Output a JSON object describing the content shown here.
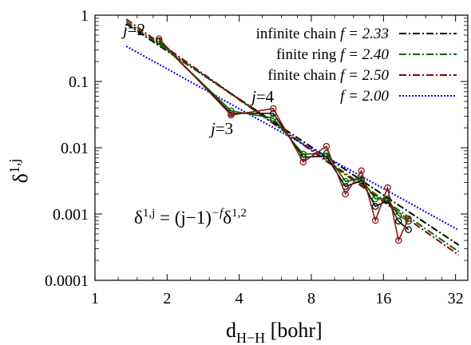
{
  "chart_data": {
    "type": "line",
    "xscale": "log2",
    "yscale": "log10",
    "xlim": [
      1,
      36
    ],
    "ylim": [
      0.0001,
      1
    ],
    "xticks": [
      1,
      2,
      4,
      8,
      16,
      32
    ],
    "xtick_labels": [
      "1",
      "2",
      "4",
      "8",
      "16",
      "32"
    ],
    "yticks": [
      0.0001,
      0.001,
      0.01,
      0.1,
      1
    ],
    "ytick_labels": [
      "0.0001",
      "0.001",
      "0.01",
      "0.1",
      "1"
    ],
    "xlabel": {
      "base": "d",
      "sub": "H−H",
      "rest": " [bohr]"
    },
    "ylabel": {
      "base": "δ",
      "sup": "1,j"
    },
    "formula": {
      "lhs": "δ",
      "lhs_sup": "1,j",
      "eq": " = (j−1)",
      "exp": "−f",
      "rhs": "δ",
      "rhs_sup": "1,2"
    },
    "annotations": [
      {
        "pre": "j",
        "text": "=2"
      },
      {
        "pre": "j",
        "text": "=4"
      },
      {
        "pre": "j",
        "text": "=3"
      }
    ],
    "fits": [
      {
        "name": "infinite chain",
        "f_label": "f = 2.33",
        "color": "#000000",
        "dash": "9 3 2 3",
        "x": [
          1.35,
          33
        ],
        "y": [
          0.74,
          0.00034
        ]
      },
      {
        "name": "finite ring",
        "f_label": "f = 2.40",
        "color": "#006400",
        "dash": "9 3 2 3",
        "x": [
          1.35,
          33
        ],
        "y": [
          0.8,
          0.00027
        ]
      },
      {
        "name": "finite chain",
        "f_label": "f = 2.50",
        "color": "#8b0000",
        "dash": "9 3 2 3",
        "x": [
          1.35,
          33
        ],
        "y": [
          0.87,
          0.00024
        ]
      },
      {
        "name": "",
        "f_label": "f = 2.00",
        "color": "#0000ff",
        "dash": "2 2",
        "x": [
          1.35,
          33
        ],
        "y": [
          0.34,
          0.00057
        ]
      }
    ],
    "series": [
      {
        "color": "#000000",
        "x": [
          1.85,
          3.7,
          5.55,
          7.4,
          9.25,
          11.1,
          12.95,
          14.8,
          16.65,
          18.5,
          20.35
        ],
        "y": [
          0.41,
          0.033,
          0.033,
          0.0072,
          0.0075,
          0.0026,
          0.0032,
          0.0013,
          0.0016,
          0.00078,
          0.00058
        ]
      },
      {
        "color": "#006400",
        "x": [
          1.85,
          3.7,
          5.55,
          7.4,
          9.25,
          11.1,
          12.95,
          14.8,
          16.65,
          18.5,
          20.35
        ],
        "y": [
          0.4,
          0.036,
          0.028,
          0.008,
          0.0082,
          0.0031,
          0.0034,
          0.0017,
          0.0017,
          0.00095,
          0.00078
        ]
      },
      {
        "color": "#8b1a1a",
        "x": [
          1.85,
          3.7,
          5.55,
          7.4,
          9.25,
          11.1,
          12.95,
          14.8,
          16.65,
          18.5,
          20.35
        ],
        "y": [
          0.44,
          0.031,
          0.039,
          0.0061,
          0.0105,
          0.002,
          0.0045,
          0.0008,
          0.0025,
          0.0004,
          0.00085
        ]
      }
    ]
  }
}
